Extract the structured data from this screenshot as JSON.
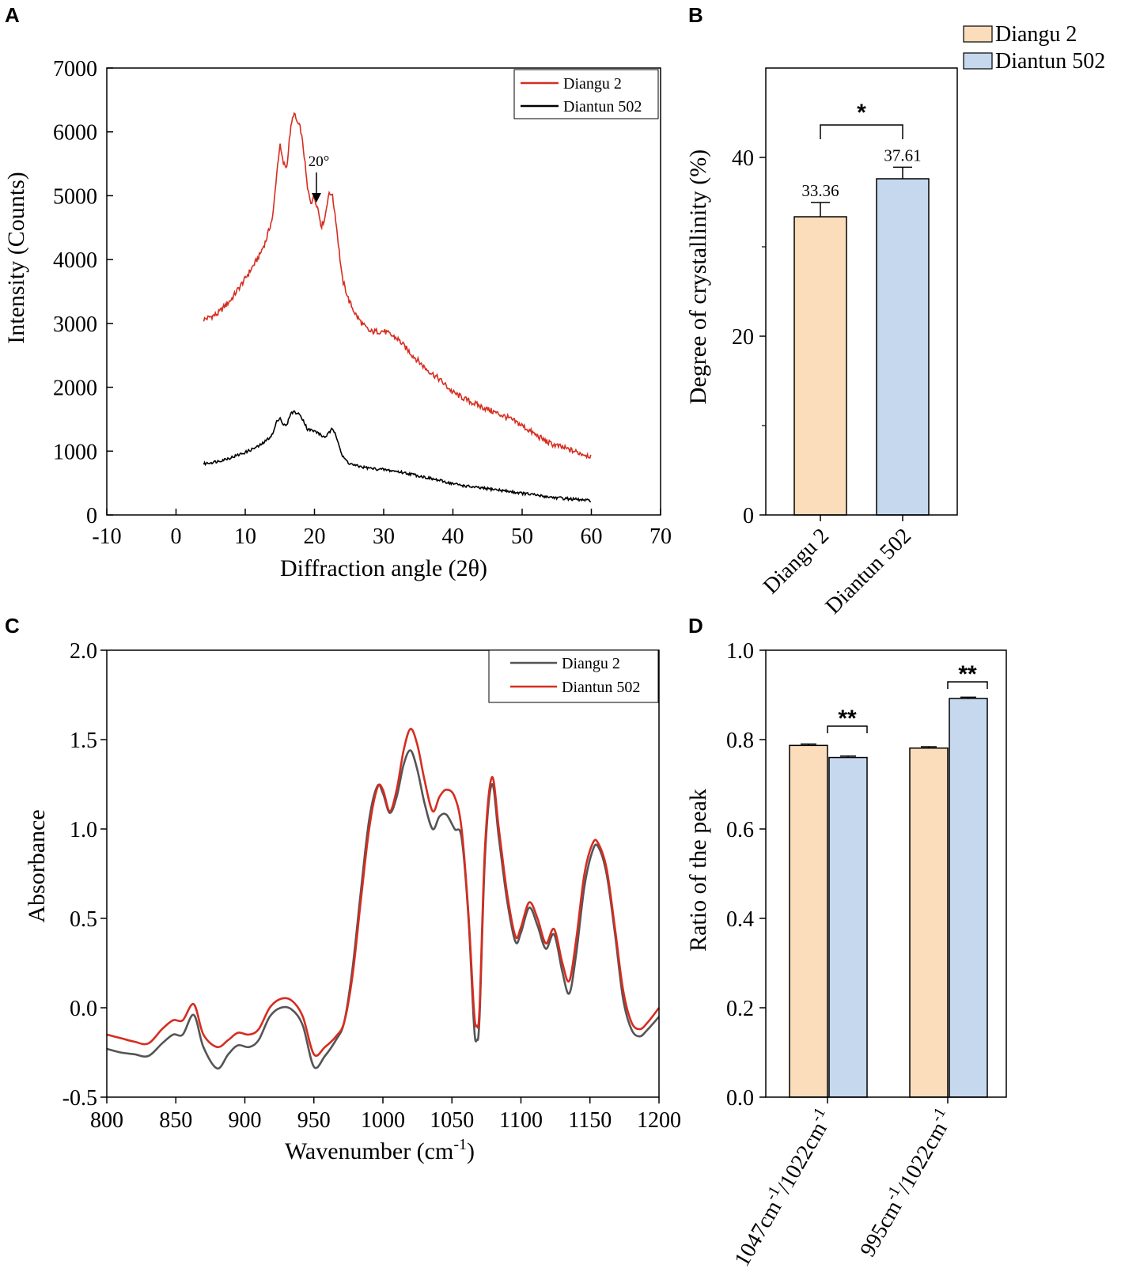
{
  "chart_data": [
    {
      "panel": "A",
      "type": "line",
      "xlabel": "Diffraction angle (2θ)",
      "ylabel": "Intensity (Counts)",
      "xlim": [
        -10,
        70
      ],
      "ylim": [
        0,
        7000
      ],
      "xticks": [
        "-10",
        "0",
        "10",
        "20",
        "30",
        "40",
        "50",
        "60",
        "70"
      ],
      "yticks": [
        "0",
        "1000",
        "2000",
        "3000",
        "4000",
        "5000",
        "6000",
        "7000"
      ],
      "annotation": "20°",
      "legend": [
        "Diangu 2",
        "Diantun 502"
      ],
      "series": [
        {
          "name": "Diangu 2",
          "color": "#d62d20",
          "x": [
            4,
            6,
            8,
            10,
            12,
            13,
            14,
            14.5,
            15,
            15.5,
            16,
            16.5,
            17,
            17.5,
            18,
            18.5,
            19,
            19.5,
            20,
            20.5,
            21,
            21.5,
            22,
            22.5,
            23,
            23.5,
            24,
            25,
            26,
            27,
            28,
            30,
            32,
            34,
            36,
            38,
            40,
            42,
            44,
            46,
            48,
            50,
            52,
            54,
            56,
            58,
            60
          ],
          "values": [
            3060,
            3150,
            3380,
            3700,
            4050,
            4300,
            4680,
            5300,
            5800,
            5500,
            5450,
            6000,
            6300,
            6150,
            6050,
            5650,
            5100,
            4900,
            4980,
            4800,
            4520,
            4650,
            5000,
            5050,
            4700,
            4200,
            3700,
            3350,
            3130,
            2980,
            2870,
            2880,
            2760,
            2520,
            2300,
            2130,
            1920,
            1800,
            1700,
            1610,
            1520,
            1400,
            1250,
            1120,
            1050,
            980,
            920
          ]
        },
        {
          "name": "Diantun 502",
          "color": "#000000",
          "x": [
            4,
            6,
            8,
            10,
            12,
            13,
            14,
            14.5,
            15,
            15.5,
            16,
            16.5,
            17,
            17.5,
            18,
            18.5,
            19,
            19.5,
            20,
            20.5,
            21,
            21.5,
            22,
            22.5,
            23,
            23.5,
            24,
            25,
            26,
            28,
            30,
            32,
            34,
            36,
            38,
            40,
            42,
            44,
            46,
            48,
            50,
            52,
            54,
            56,
            58,
            60
          ],
          "values": [
            800,
            840,
            900,
            980,
            1080,
            1160,
            1270,
            1450,
            1530,
            1410,
            1400,
            1580,
            1620,
            1590,
            1560,
            1460,
            1340,
            1330,
            1310,
            1290,
            1240,
            1220,
            1270,
            1340,
            1290,
            1120,
            920,
            810,
            770,
            730,
            710,
            680,
            640,
            590,
            540,
            490,
            450,
            420,
            400,
            370,
            340,
            310,
            280,
            260,
            240,
            220
          ]
        }
      ]
    },
    {
      "panel": "B",
      "type": "bar",
      "categories": [
        "Diangu 2",
        "Diantun 502"
      ],
      "values": [
        33.36,
        37.61
      ],
      "value_labels": [
        "33.36",
        "37.61"
      ],
      "errors": [
        1.6,
        1.3
      ],
      "colors": [
        "#fbdcbb",
        "#c5d8ee"
      ],
      "ylabel": "Degree of crystallinity (%)",
      "ylim": [
        0,
        50
      ],
      "yticks": [
        "0",
        "20",
        "40"
      ],
      "significance": "*",
      "legend": [
        "Diangu 2",
        "Diantun 502"
      ]
    },
    {
      "panel": "C",
      "type": "line",
      "xlabel": "Wavenumber (cm",
      "xlabel_sup": "-1",
      "xlabel_end": ")",
      "ylabel": "Absorbance",
      "xlim": [
        800,
        1200
      ],
      "ylim": [
        -0.5,
        2.0
      ],
      "xticks": [
        "800",
        "850",
        "900",
        "950",
        "1000",
        "1050",
        "1100",
        "1150",
        "1200"
      ],
      "yticks": [
        "-0.5",
        "0.0",
        "0.5",
        "1.0",
        "1.5",
        "2.0"
      ],
      "legend": [
        "Diangu 2",
        "Diantun 502"
      ],
      "series": [
        {
          "name": "Diangu 2",
          "color": "#555555",
          "x": [
            800,
            810,
            820,
            830,
            840,
            848,
            855,
            863,
            870,
            880,
            888,
            895,
            903,
            910,
            918,
            926,
            934,
            942,
            950,
            958,
            966,
            972,
            978,
            984,
            990,
            996,
            1000,
            1005,
            1010,
            1015,
            1020,
            1025,
            1030,
            1036,
            1041,
            1046,
            1052,
            1057,
            1062,
            1066,
            1068,
            1070,
            1074,
            1079,
            1084,
            1090,
            1096,
            1100,
            1106,
            1112,
            1118,
            1124,
            1130,
            1135,
            1140,
            1146,
            1152,
            1156,
            1162,
            1168,
            1174,
            1180,
            1186,
            1192,
            1200
          ],
          "values": [
            -0.23,
            -0.25,
            -0.26,
            -0.27,
            -0.2,
            -0.15,
            -0.15,
            -0.04,
            -0.22,
            -0.34,
            -0.26,
            -0.21,
            -0.22,
            -0.18,
            -0.05,
            0.0,
            -0.01,
            -0.1,
            -0.33,
            -0.27,
            -0.18,
            -0.08,
            0.22,
            0.65,
            1.05,
            1.24,
            1.2,
            1.09,
            1.18,
            1.36,
            1.44,
            1.33,
            1.15,
            1.0,
            1.07,
            1.08,
            1.0,
            0.95,
            0.5,
            -0.1,
            -0.18,
            -0.05,
            0.85,
            1.25,
            0.95,
            0.6,
            0.37,
            0.42,
            0.56,
            0.46,
            0.33,
            0.41,
            0.2,
            0.08,
            0.3,
            0.68,
            0.88,
            0.9,
            0.75,
            0.42,
            0.05,
            -0.12,
            -0.16,
            -0.12,
            -0.05
          ]
        },
        {
          "name": "Diantun 502",
          "color": "#d62d20",
          "x": [
            800,
            810,
            820,
            830,
            840,
            848,
            855,
            863,
            870,
            880,
            888,
            895,
            903,
            910,
            918,
            926,
            934,
            942,
            950,
            958,
            966,
            972,
            978,
            984,
            990,
            996,
            1000,
            1005,
            1010,
            1015,
            1020,
            1025,
            1030,
            1036,
            1041,
            1046,
            1052,
            1057,
            1062,
            1066,
            1068,
            1070,
            1074,
            1079,
            1084,
            1090,
            1096,
            1100,
            1106,
            1112,
            1118,
            1124,
            1130,
            1135,
            1140,
            1146,
            1152,
            1156,
            1162,
            1168,
            1174,
            1180,
            1186,
            1192,
            1200
          ],
          "values": [
            -0.15,
            -0.17,
            -0.19,
            -0.2,
            -0.12,
            -0.07,
            -0.07,
            0.02,
            -0.15,
            -0.22,
            -0.18,
            -0.14,
            -0.15,
            -0.12,
            0.0,
            0.05,
            0.04,
            -0.05,
            -0.26,
            -0.22,
            -0.16,
            -0.08,
            0.18,
            0.6,
            1.0,
            1.23,
            1.22,
            1.1,
            1.22,
            1.44,
            1.56,
            1.47,
            1.28,
            1.1,
            1.18,
            1.22,
            1.18,
            1.0,
            0.52,
            -0.02,
            -0.1,
            0.0,
            0.9,
            1.29,
            1.0,
            0.64,
            0.4,
            0.45,
            0.59,
            0.5,
            0.36,
            0.44,
            0.25,
            0.15,
            0.38,
            0.75,
            0.92,
            0.92,
            0.78,
            0.45,
            0.1,
            -0.08,
            -0.12,
            -0.08,
            0.0
          ]
        }
      ]
    },
    {
      "panel": "D",
      "type": "bar",
      "categories": [
        "1047cm",
        "995cm"
      ],
      "category_tails": [
        "/1022cm",
        "/1022cm"
      ],
      "category_sup": "-1",
      "series": [
        {
          "name": "Diangu 2",
          "color": "#fbdcbb",
          "values": [
            0.787,
            0.781
          ],
          "errors": [
            0.003,
            0.003
          ]
        },
        {
          "name": "Diantun 502",
          "color": "#c5d8ee",
          "values": [
            0.76,
            0.892
          ],
          "errors": [
            0.003,
            0.003
          ]
        }
      ],
      "ylabel": "Ratio of the peak",
      "ylim": [
        0.0,
        1.0
      ],
      "yticks": [
        "0.0",
        "0.2",
        "0.4",
        "0.6",
        "0.8",
        "1.0"
      ],
      "significance": [
        "**",
        "**"
      ]
    }
  ]
}
